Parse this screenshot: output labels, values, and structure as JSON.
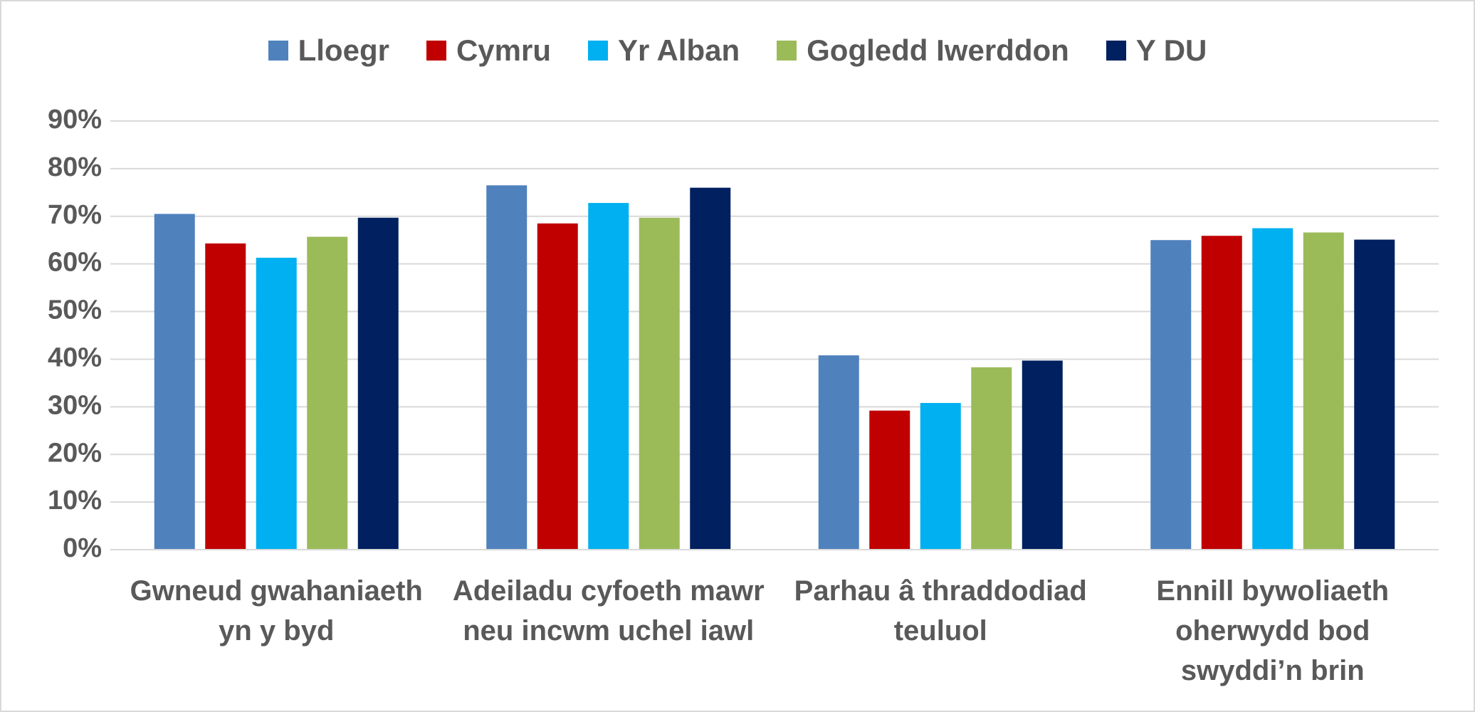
{
  "chart_data": {
    "type": "bar",
    "categories": [
      "Gwneud gwahaniaeth yn y byd",
      "Adeiladu cyfoeth mawr neu incwm uchel iawl",
      "Parhau â thraddodiad teuluol",
      "Ennill bywoliaeth oherwydd bod swyddi’n brin"
    ],
    "series": [
      {
        "name": "Lloegr",
        "color": "#4f81bd",
        "values": [
          70.5,
          76.5,
          40.8,
          65.0
        ]
      },
      {
        "name": "Cymru",
        "color": "#c00000",
        "values": [
          64.3,
          68.5,
          29.2,
          65.9
        ]
      },
      {
        "name": "Yr Alban",
        "color": "#00b0f0",
        "values": [
          61.3,
          72.8,
          30.8,
          67.5
        ]
      },
      {
        "name": "Gogledd Iwerddon",
        "color": "#9bbb59",
        "values": [
          65.7,
          69.7,
          38.3,
          66.6
        ]
      },
      {
        "name": "Y DU",
        "color": "#002060",
        "values": [
          69.7,
          76.0,
          39.7,
          65.1
        ]
      }
    ],
    "ylim": [
      0,
      90
    ],
    "yticks": [
      {
        "value": 0,
        "label": "0%"
      },
      {
        "value": 10,
        "label": "10%"
      },
      {
        "value": 20,
        "label": "20%"
      },
      {
        "value": 30,
        "label": "30%"
      },
      {
        "value": 40,
        "label": "40%"
      },
      {
        "value": 50,
        "label": "50%"
      },
      {
        "value": 60,
        "label": "60%"
      },
      {
        "value": 70,
        "label": "70%"
      },
      {
        "value": 80,
        "label": "80%"
      },
      {
        "value": 90,
        "label": "90%"
      }
    ],
    "grid": true,
    "legend": "top"
  }
}
